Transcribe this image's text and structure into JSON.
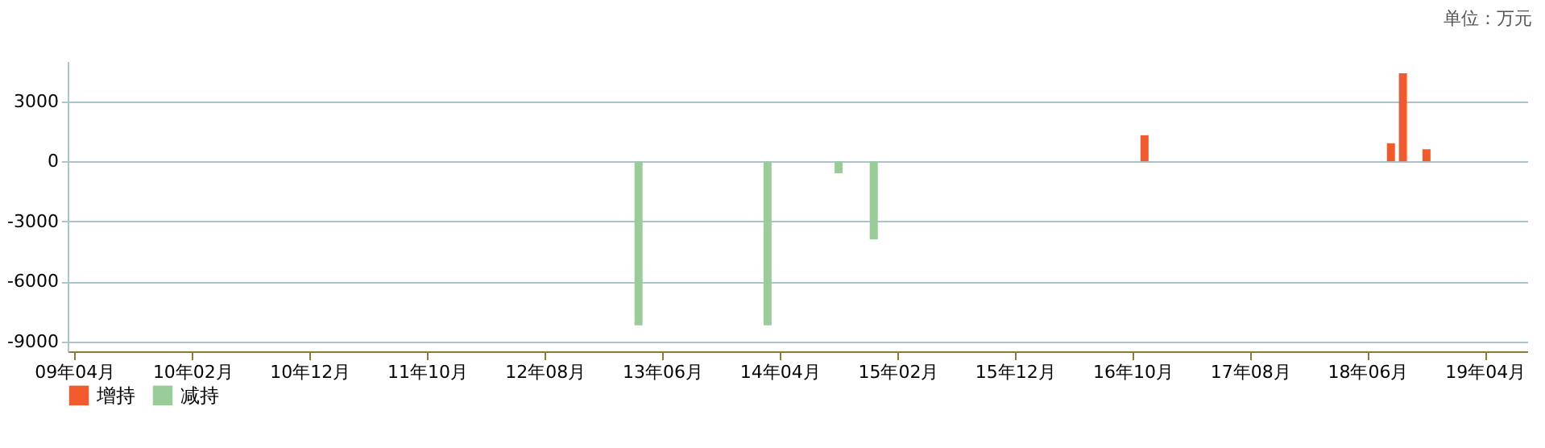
{
  "chart_data": {
    "type": "bar",
    "annotations": [
      "单位：万元"
    ],
    "series": [
      {
        "name": "增持",
        "color": "#f05a2c",
        "x": [
          "2016-11",
          "2018-08",
          "2018-09",
          "2018-11"
        ],
        "values": [
          1300,
          900,
          4400,
          600
        ]
      },
      {
        "name": "减持",
        "color": "#99cc99",
        "x": [
          "2013-04",
          "2014-03",
          "2014-09",
          "2014-12"
        ],
        "values": [
          -8200,
          -8200,
          -600,
          -3900
        ]
      }
    ],
    "xlim": [
      "2009-03-15",
      "2019-07-20"
    ],
    "xticks": [
      {
        "value": "2009-04",
        "label": "09年04月"
      },
      {
        "value": "2010-02",
        "label": "10年02月"
      },
      {
        "value": "2010-12",
        "label": "10年12月"
      },
      {
        "value": "2011-10",
        "label": "11年10月"
      },
      {
        "value": "2012-08",
        "label": "12年08月"
      },
      {
        "value": "2013-06",
        "label": "13年06月"
      },
      {
        "value": "2014-04",
        "label": "14年04月"
      },
      {
        "value": "2015-02",
        "label": "15年02月"
      },
      {
        "value": "2015-12",
        "label": "15年12月"
      },
      {
        "value": "2016-10",
        "label": "16年10月"
      },
      {
        "value": "2017-08",
        "label": "17年08月"
      },
      {
        "value": "2018-06",
        "label": "18年06月"
      },
      {
        "value": "2019-04",
        "label": "19年04月"
      }
    ],
    "ylim": [
      -9500,
      5000
    ],
    "yticks": [
      -9000,
      -6000,
      -3000,
      0,
      3000
    ],
    "grid": "y",
    "legend": "bottom"
  }
}
